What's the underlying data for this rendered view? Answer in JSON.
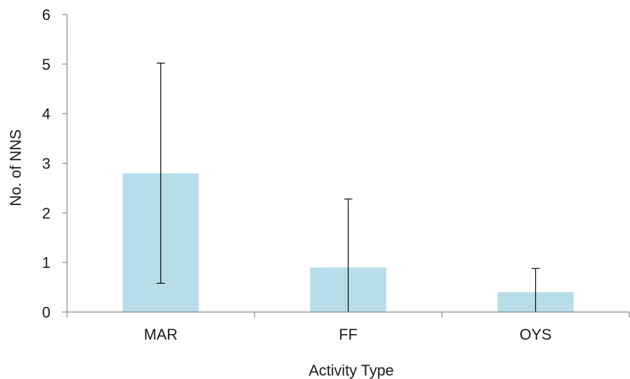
{
  "chart_data": {
    "type": "bar",
    "title": "",
    "xlabel": "Activity Type",
    "ylabel": "No. of NNS",
    "categories": [
      "MAR",
      "FF",
      "OYS"
    ],
    "values": [
      2.8,
      0.9,
      0.4
    ],
    "error_upper": [
      5.02,
      2.28,
      0.88
    ],
    "error_lower": [
      0.58,
      0.0,
      0.0
    ],
    "ylim": [
      0,
      6
    ],
    "yticks": [
      0,
      1,
      2,
      3,
      4,
      5,
      6
    ],
    "grid": false,
    "legend": "none",
    "bar_color": "#b7dde8",
    "axis_color": "#868686",
    "error_bar_color": "#000000"
  }
}
